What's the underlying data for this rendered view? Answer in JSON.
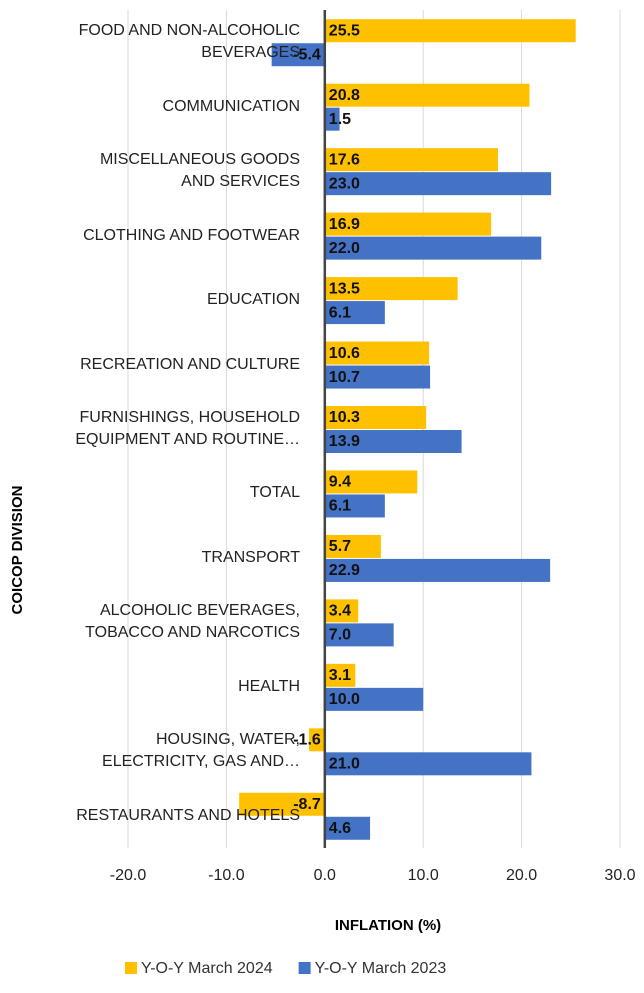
{
  "chart_data": {
    "type": "hbar",
    "categories": [
      "FOOD AND NON-ALCOHOLIC\nBEVERAGES",
      "COMMUNICATION",
      "MISCELLANEOUS GOODS\nAND SERVICES",
      "CLOTHING AND FOOTWEAR",
      "EDUCATION",
      "RECREATION AND CULTURE",
      "FURNISHINGS, HOUSEHOLD\nEQUIPMENT AND ROUTINE…",
      "TOTAL",
      "TRANSPORT",
      "ALCOHOLIC BEVERAGES,\nTOBACCO AND NARCOTICS",
      "HEALTH",
      "HOUSING, WATER,\nELECTRICITY, GAS AND…",
      "RESTAURANTS AND HOTELS"
    ],
    "series": [
      {
        "name": "Y-O-Y March 2024",
        "color": "#FFC000",
        "values": [
          25.5,
          20.8,
          17.6,
          16.9,
          13.5,
          10.6,
          10.3,
          9.4,
          5.7,
          3.4,
          3.1,
          -1.6,
          -8.7
        ],
        "value_labels": [
          "25.5",
          "20.8",
          "17.6",
          "16.9",
          "13.5",
          "10.6",
          "10.3",
          "9.4",
          "5.7",
          "3.4",
          "3.1",
          "-1.6",
          "-8.7"
        ]
      },
      {
        "name": "Y-O-Y March 2023",
        "color": "#4472C4",
        "values": [
          -5.4,
          1.5,
          23.0,
          22.0,
          6.1,
          10.7,
          13.9,
          6.1,
          22.9,
          7.0,
          10.0,
          21.0,
          4.6
        ],
        "value_labels": [
          "-5.4",
          "1.5",
          "23.0",
          "22.0",
          "6.1",
          "10.7",
          "13.9",
          "6.1",
          "22.9",
          "7.0",
          "10.0",
          "21.0",
          "4.6"
        ]
      }
    ],
    "xlim": [
      -20,
      30
    ],
    "xticks": [
      {
        "value": -20,
        "label": "-20.0"
      },
      {
        "value": -10,
        "label": "-10.0"
      },
      {
        "value": 0,
        "label": "0.0"
      },
      {
        "value": 10,
        "label": "10.0"
      },
      {
        "value": 20,
        "label": "20.0"
      },
      {
        "value": 30,
        "label": "30.0"
      }
    ],
    "xlabel": "INFLATION (%)",
    "ylabel": "COICOP DIVISION",
    "grid": true,
    "legend": "bottom"
  }
}
